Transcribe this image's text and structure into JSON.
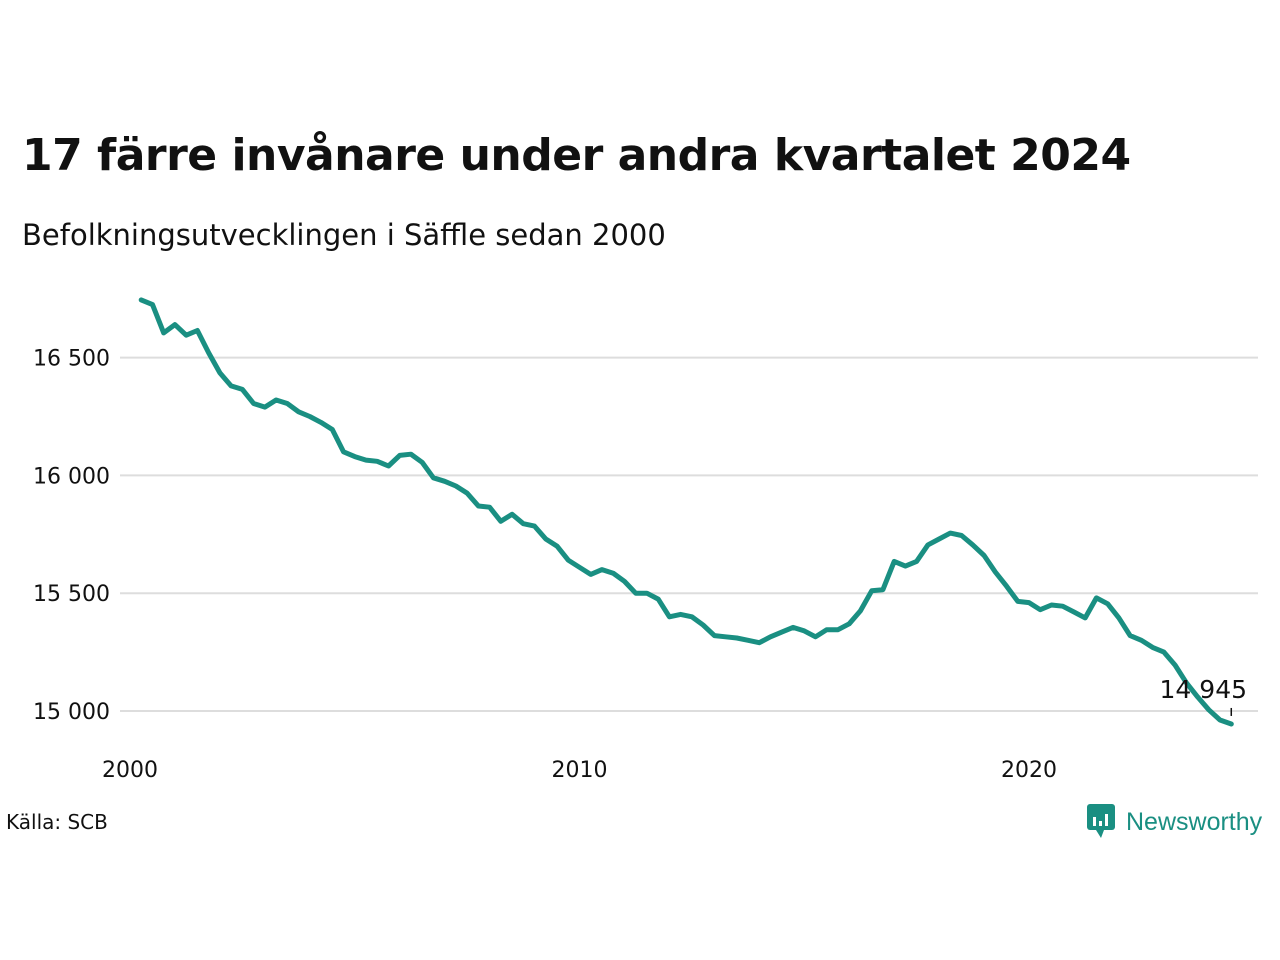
{
  "title": "17 färre invånare under andra kvartalet 2024",
  "subtitle": "Befolkningsutvecklingen i Säffle sedan 2000",
  "source": "Källa: SCB",
  "brand": "Newsworthy",
  "colors": {
    "line": "#1a8f82",
    "grid": "#dddddd",
    "text": "#111111",
    "brand": "#1a8f82"
  },
  "chart_data": {
    "type": "line",
    "title": "17 färre invånare under andra kvartalet 2024",
    "subtitle": "Befolkningsutvecklingen i Säffle sedan 2000",
    "xlabel": "",
    "ylabel": "",
    "xlim": [
      2000,
      2025
    ],
    "ylim": [
      14900,
      16750
    ],
    "x_ticks": [
      2000,
      2010,
      2020
    ],
    "x_tick_labels": [
      "2000",
      "2010",
      "2020"
    ],
    "y_ticks": [
      15000,
      15500,
      16000,
      16500
    ],
    "y_tick_labels": [
      "15 000",
      "15 500",
      "16 000",
      "16 500"
    ],
    "grid": "horizontal",
    "end_label": "14 945",
    "series": [
      {
        "x": [
          2000.25,
          2000.5,
          2000.75,
          2001.0,
          2001.25,
          2001.5,
          2001.75,
          2002.0,
          2002.25,
          2002.5,
          2002.75,
          2003.0,
          2003.25,
          2003.5,
          2003.75,
          2004.0,
          2004.25,
          2004.5,
          2004.75,
          2005.0,
          2005.25,
          2005.5,
          2005.75,
          2006.0,
          2006.25,
          2006.5,
          2006.75,
          2007.0,
          2007.25,
          2007.5,
          2007.75,
          2008.0,
          2008.25,
          2008.5,
          2008.75,
          2009.0,
          2009.25,
          2009.5,
          2009.75,
          2010.0,
          2010.25,
          2010.5,
          2010.75,
          2011.0,
          2011.25,
          2011.5,
          2011.75,
          2012.0,
          2012.25,
          2012.5,
          2012.75,
          2013.0,
          2013.25,
          2013.5,
          2013.75,
          2014.0,
          2014.25,
          2014.5,
          2014.75,
          2015.0,
          2015.25,
          2015.5,
          2015.75,
          2016.0,
          2016.25,
          2016.5,
          2016.75,
          2017.0,
          2017.25,
          2017.5,
          2017.75,
          2018.0,
          2018.25,
          2018.5,
          2018.75,
          2019.0,
          2019.25,
          2019.5,
          2019.75,
          2020.0,
          2020.25,
          2020.5,
          2020.75,
          2021.0,
          2021.25,
          2021.5,
          2021.75,
          2022.0,
          2022.25,
          2022.5,
          2022.75,
          2023.0,
          2023.25,
          2023.5,
          2023.75,
          2024.0,
          2024.25,
          2024.5
        ],
        "values": [
          16745,
          16725,
          16605,
          16640,
          16595,
          16615,
          16520,
          16435,
          16380,
          16365,
          16305,
          16290,
          16320,
          16305,
          16270,
          16250,
          16225,
          16195,
          16100,
          16080,
          16065,
          16060,
          16040,
          16085,
          16090,
          16055,
          15990,
          15975,
          15955,
          15925,
          15870,
          15865,
          15805,
          15835,
          15795,
          15785,
          15730,
          15700,
          15640,
          15610,
          15580,
          15600,
          15585,
          15550,
          15500,
          15500,
          15475,
          15400,
          15410,
          15400,
          15365,
          15320,
          15315,
          15310,
          15300,
          15290,
          15315,
          15335,
          15355,
          15340,
          15315,
          15345,
          15345,
          15370,
          15425,
          15510,
          15515,
          15635,
          15615,
          15635,
          15705,
          15730,
          15755,
          15745,
          15705,
          15660,
          15590,
          15530,
          15465,
          15460,
          15430,
          15450,
          15445,
          15420,
          15395,
          15480,
          15455,
          15395,
          15320,
          15300,
          15270,
          15250,
          15195,
          15120,
          15060,
          15005,
          14962,
          14945
        ]
      }
    ]
  }
}
